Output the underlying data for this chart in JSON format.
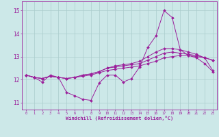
{
  "x": [
    0,
    1,
    2,
    3,
    4,
    5,
    6,
    7,
    8,
    9,
    10,
    11,
    12,
    13,
    14,
    15,
    16,
    17,
    18,
    19,
    20,
    21,
    22,
    23
  ],
  "line1": [
    12.2,
    12.1,
    11.9,
    12.2,
    12.1,
    11.45,
    11.3,
    11.15,
    11.1,
    11.85,
    12.2,
    12.2,
    11.9,
    12.05,
    12.55,
    13.4,
    13.9,
    15.0,
    14.7,
    13.3,
    13.05,
    12.95,
    12.7,
    12.35
  ],
  "line2": [
    12.2,
    12.1,
    12.05,
    12.15,
    12.1,
    12.05,
    12.1,
    12.15,
    12.2,
    12.3,
    12.4,
    12.45,
    12.5,
    12.55,
    12.6,
    12.7,
    12.8,
    12.95,
    13.0,
    13.05,
    13.05,
    13.0,
    12.95,
    12.85
  ],
  "line3": [
    12.2,
    12.1,
    12.05,
    12.15,
    12.1,
    12.05,
    12.1,
    12.2,
    12.25,
    12.35,
    12.5,
    12.55,
    12.6,
    12.65,
    12.7,
    12.85,
    13.0,
    13.15,
    13.2,
    13.15,
    13.1,
    13.05,
    12.95,
    12.85
  ],
  "line4": [
    12.2,
    12.1,
    12.05,
    12.15,
    12.1,
    12.05,
    12.1,
    12.2,
    12.25,
    12.35,
    12.5,
    12.6,
    12.65,
    12.7,
    12.8,
    13.0,
    13.2,
    13.35,
    13.35,
    13.3,
    13.2,
    13.1,
    12.95,
    12.4
  ],
  "color": "#9b1f9b",
  "bg_color": "#cce8e8",
  "grid_color": "#aacccc",
  "xlabel": "Windchill (Refroidissement éolien,°C)",
  "xlim": [
    -0.5,
    23.5
  ],
  "ylim": [
    10.7,
    15.4
  ],
  "yticks": [
    11,
    12,
    13,
    14,
    15
  ],
  "xticks": [
    0,
    1,
    2,
    3,
    4,
    5,
    6,
    7,
    8,
    9,
    10,
    11,
    12,
    13,
    14,
    15,
    16,
    17,
    18,
    19,
    20,
    21,
    22,
    23
  ],
  "markersize": 2.0,
  "linewidth": 0.7
}
